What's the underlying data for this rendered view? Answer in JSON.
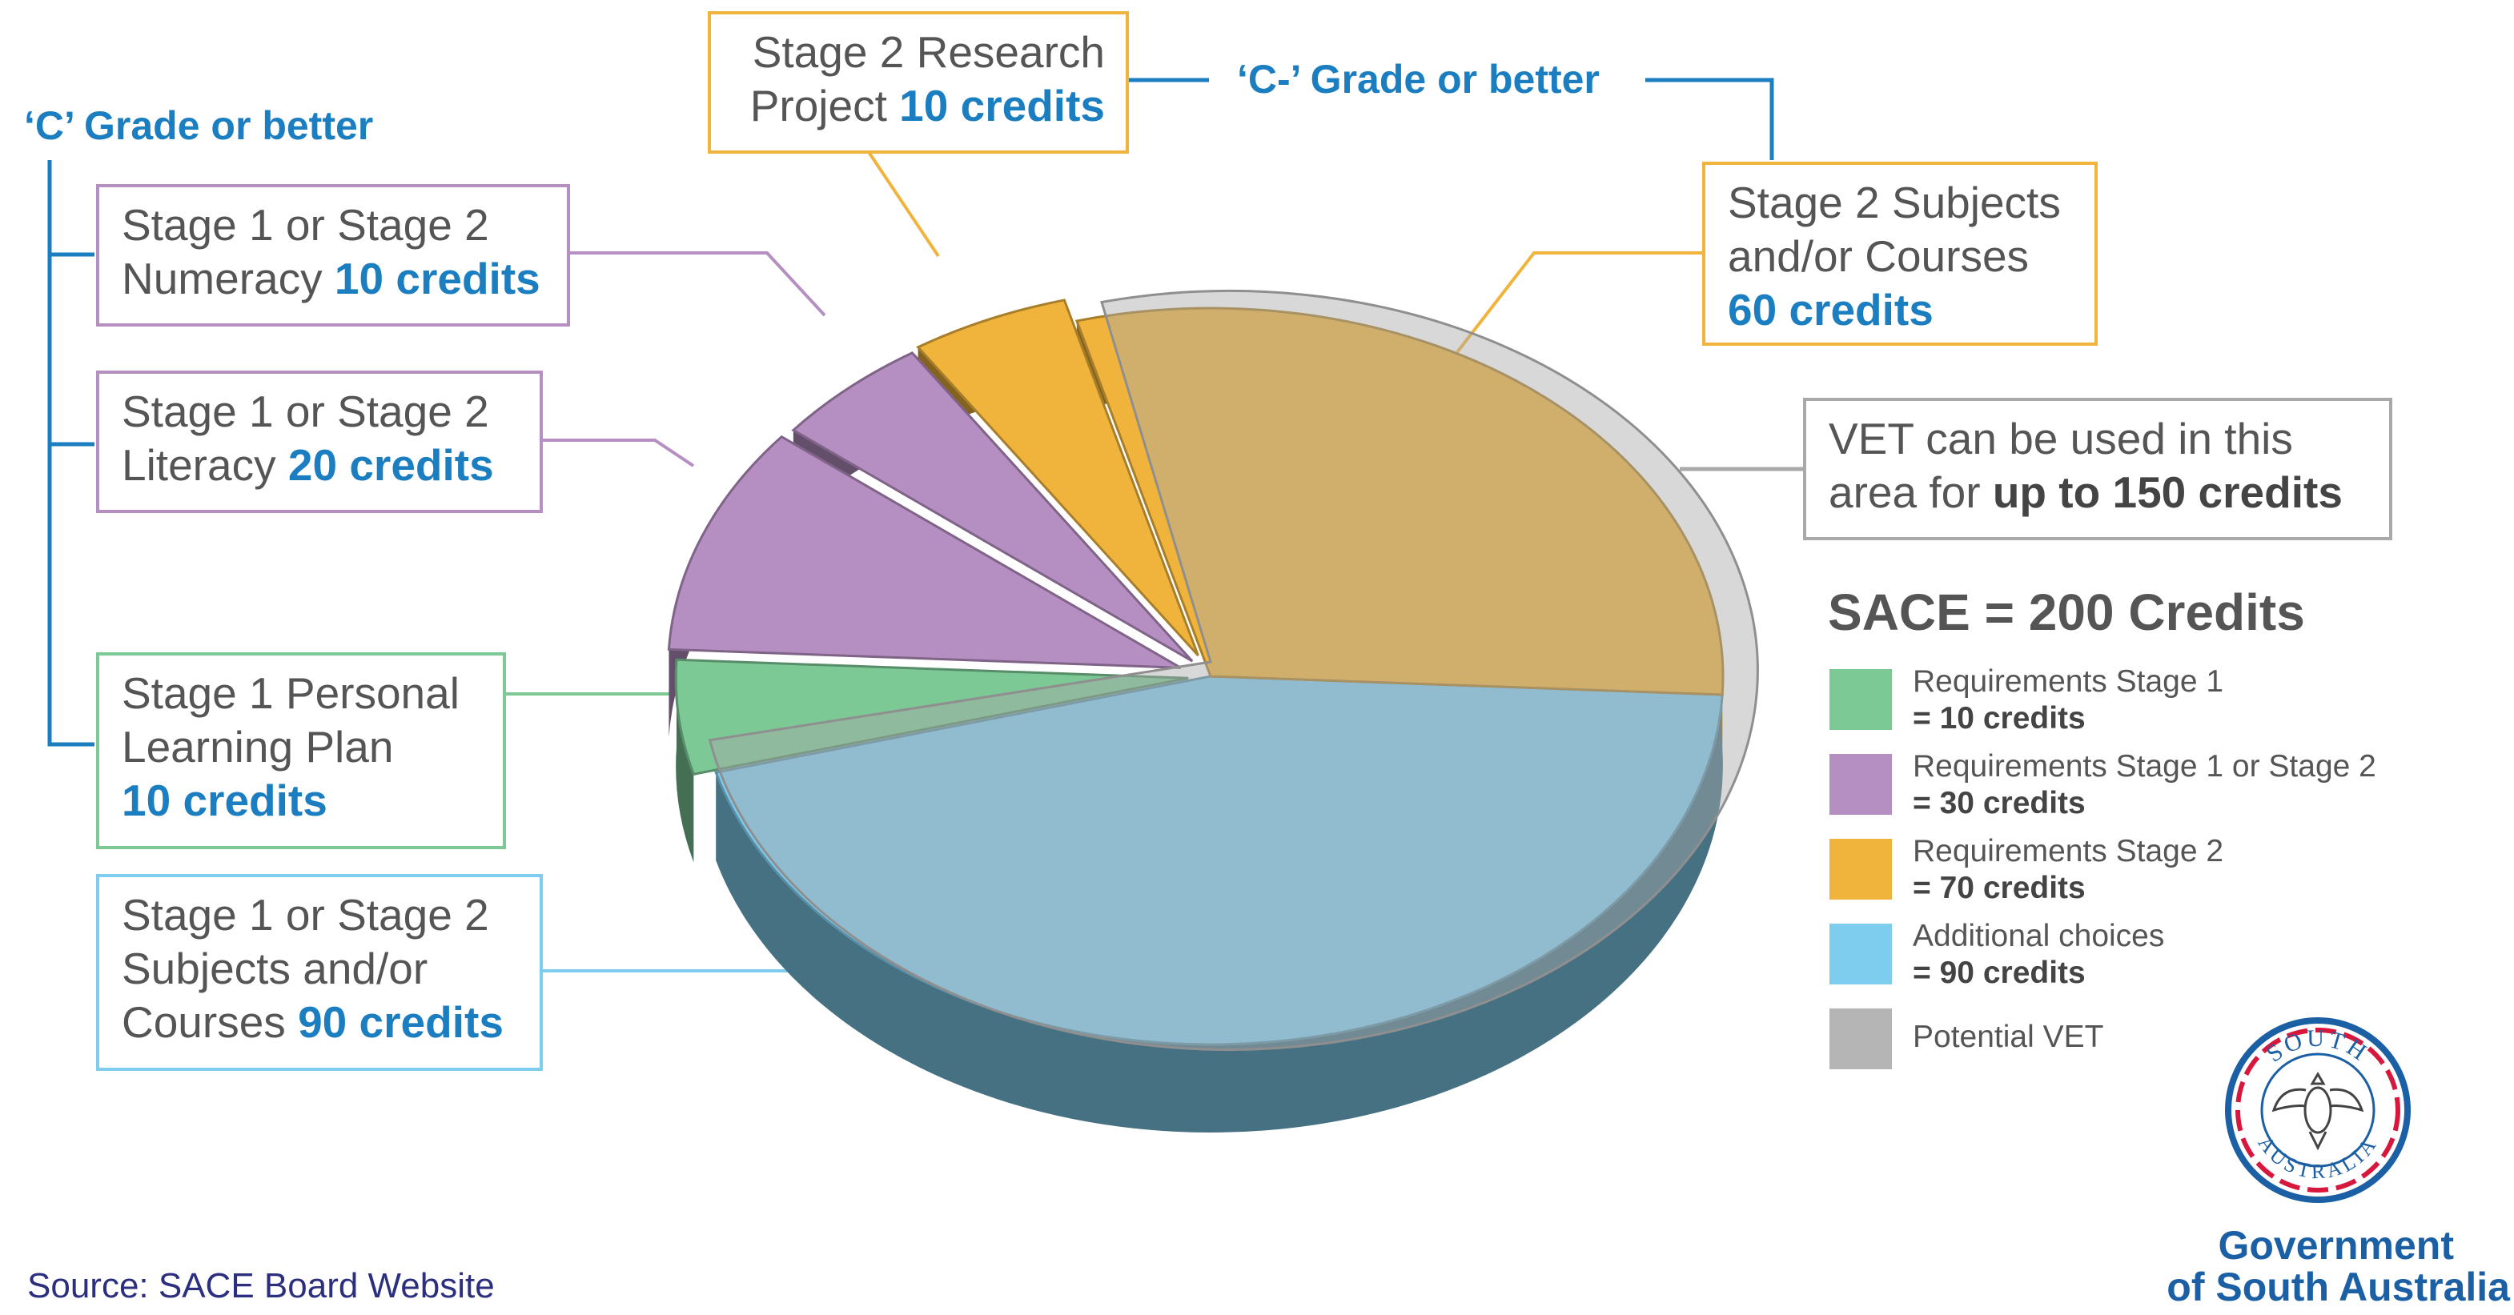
{
  "chart_data": {
    "type": "pie",
    "title": "SACE = 200 Credits",
    "slices": [
      {
        "label": "Stage 1 Personal Learning Plan",
        "value": 10,
        "color": "#7dc996"
      },
      {
        "label": "Stage 1 or Stage 2 Literacy",
        "value": 20,
        "color": "#b68fc2"
      },
      {
        "label": "Stage 1 or Stage 2 Numeracy",
        "value": 10,
        "color": "#b68fc2"
      },
      {
        "label": "Stage 2 Research Project",
        "value": 10,
        "color": "#f0b43c"
      },
      {
        "label": "Stage 2 Subjects and/or Courses",
        "value": 60,
        "color": "#f0b43c"
      },
      {
        "label": "Stage 1 or Stage 2 Subjects and/or Courses",
        "value": 90,
        "color": "#7fcdee"
      }
    ],
    "overlay": {
      "label": "Potential VET",
      "max_credits": 150,
      "color": "#a9a9a9"
    },
    "legend": [
      {
        "line1": "Requirements Stage 1",
        "line2": "= 10 credits",
        "color": "#7dc996"
      },
      {
        "line1": "Requirements Stage 1 or Stage 2",
        "line2": "= 30 credits",
        "color": "#b68fc2"
      },
      {
        "line1": "Requirements Stage 2",
        "line2": "= 70 credits",
        "color": "#f0b43c"
      },
      {
        "line1": "Additional choices",
        "line2": "= 90 credits",
        "color": "#7fcdee"
      },
      {
        "line1": "Potential VET",
        "line2": "",
        "color": "#b5b5b5"
      }
    ]
  },
  "callouts": {
    "left_grade": "‘C’ Grade or better",
    "top_grade": "‘C-’ Grade or better",
    "numeracy": {
      "line1": "Stage 1 or Stage 2",
      "line2": "Numeracy",
      "credits": "10 credits"
    },
    "literacy": {
      "line1": "Stage 1 or Stage 2",
      "line2": "Literacy",
      "credits": "20 credits"
    },
    "plp": {
      "line1": "Stage 1 Personal",
      "line2": "Learning Plan",
      "credits": "10 credits"
    },
    "subjects": {
      "line1": "Stage 1 or Stage 2",
      "line2": "Subjects and/or",
      "line3": "Courses",
      "credits": "90 credits"
    },
    "research": {
      "line1": "Stage 2 Research",
      "line2": "Project",
      "credits": "10 credits"
    },
    "stage2": {
      "line1": "Stage 2 Subjects",
      "line2": "and/or Courses",
      "credits": "60 credits"
    },
    "vet": {
      "line1": "VET can be used in this",
      "line2a": "area for",
      "line2b": "up to 150 credits"
    }
  },
  "footer": {
    "source": "Source: SACE Board Website",
    "gov_line1": "Government",
    "gov_line2": "of South Australia",
    "seal_top": "SOUTH",
    "seal_bottom": "AUSTRALIA"
  }
}
